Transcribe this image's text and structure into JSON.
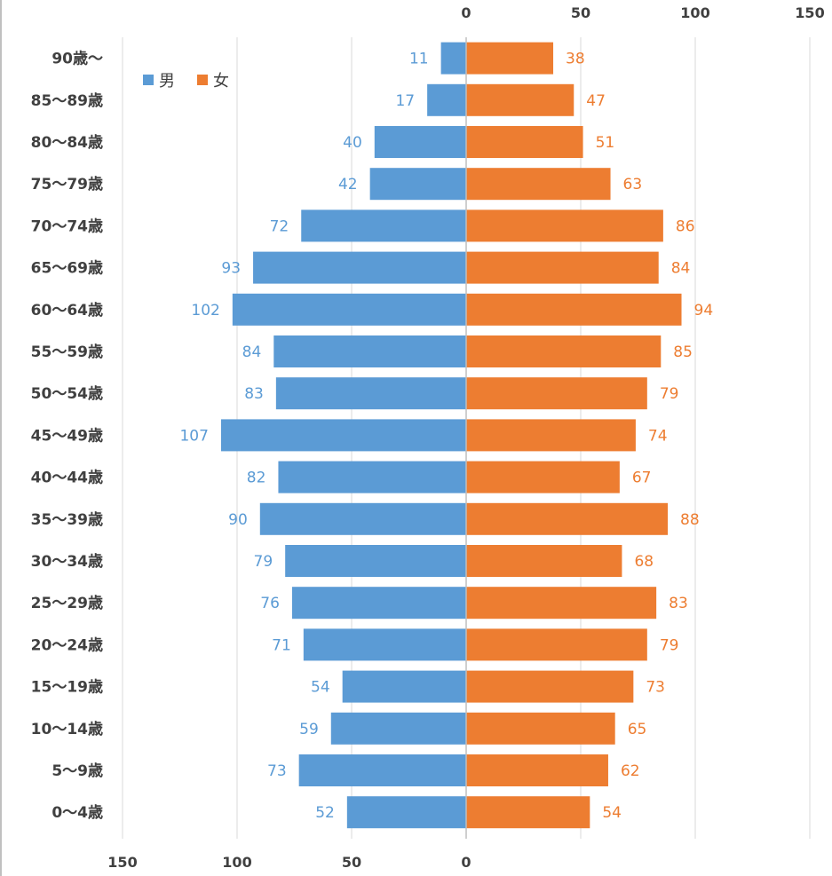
{
  "chart_data": {
    "type": "bar",
    "orientation": "horizontal-population-pyramid",
    "categories": [
      "0〜4歳",
      "5〜9歳",
      "10〜14歳",
      "15〜19歳",
      "20〜24歳",
      "25〜29歳",
      "30〜34歳",
      "35〜39歳",
      "40〜44歳",
      "45〜49歳",
      "50〜54歳",
      "55〜59歳",
      "60〜64歳",
      "65〜69歳",
      "70〜74歳",
      "75〜79歳",
      "80〜84歳",
      "85〜89歳",
      "90歳〜"
    ],
    "series": [
      {
        "name": "男",
        "color": "#5b9bd5",
        "side": "left",
        "values": [
          52,
          73,
          59,
          54,
          71,
          76,
          79,
          90,
          82,
          107,
          83,
          84,
          102,
          93,
          72,
          42,
          40,
          17,
          11
        ]
      },
      {
        "name": "女",
        "color": "#ed7d31",
        "side": "right",
        "values": [
          54,
          62,
          65,
          73,
          79,
          83,
          68,
          88,
          67,
          74,
          79,
          85,
          94,
          84,
          86,
          63,
          51,
          47,
          38
        ]
      }
    ],
    "male_axis": {
      "ticks": [
        "150",
        "100",
        "50",
        "0"
      ],
      "range": [
        0,
        150
      ],
      "position": "bottom"
    },
    "female_axis": {
      "ticks": [
        "0",
        "50",
        "100",
        "150"
      ],
      "range": [
        0,
        150
      ],
      "position": "top"
    },
    "legend": {
      "placement": "top-left",
      "entries": [
        "男",
        "女"
      ]
    },
    "title": "",
    "grid": true
  }
}
